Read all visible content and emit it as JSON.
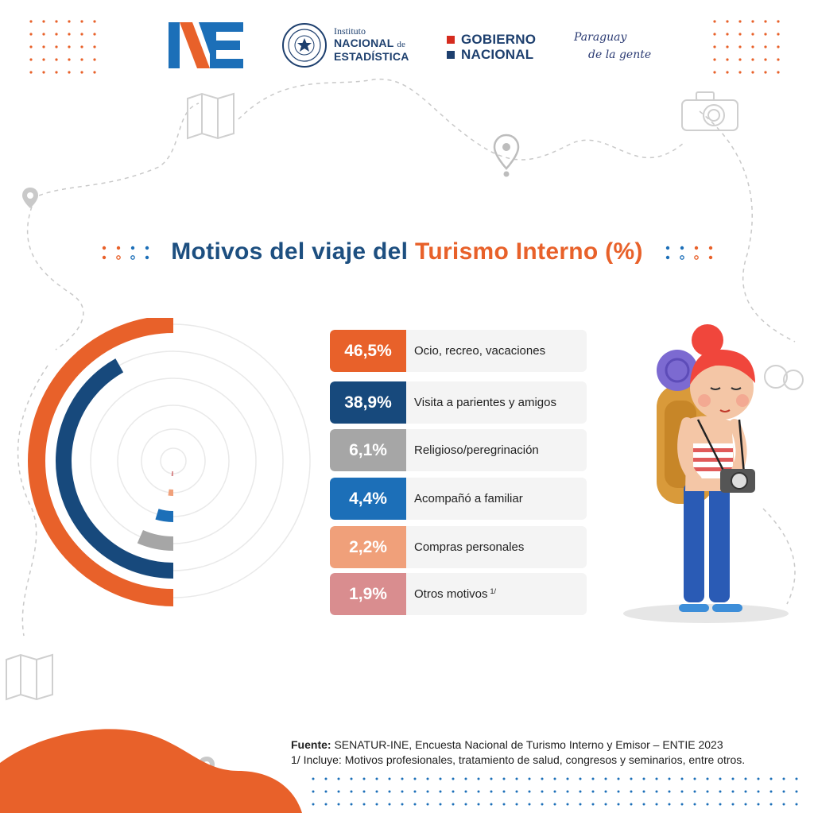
{
  "header": {
    "ine_logo": "INE",
    "institute_small": "Instituto",
    "institute_name_1": "NACIONAL",
    "institute_name_de": "de",
    "institute_name_2": "ESTADÍSTICA",
    "gobierno_1": "GOBIERNO",
    "gobierno_2": "NACIONAL",
    "slogan_1": "Paraguay",
    "slogan_2": "de la gente"
  },
  "title": {
    "part1": "Motivos del viaje del ",
    "part2": "Turismo Interno (%)"
  },
  "chart_data": {
    "type": "radial-bar",
    "title": "Motivos del viaje del Turismo Interno (%)",
    "categories": [
      "Ocio, recreo, vacaciones",
      "Visita a parientes y amigos",
      "Religioso/peregrinación",
      "Acompañó a familiar",
      "Compras personales",
      "Otros motivos"
    ],
    "values": [
      46.5,
      38.9,
      6.1,
      4.4,
      2.2,
      1.9
    ],
    "value_labels": [
      "46,5%",
      "38,9%",
      "6,1%",
      "4,4%",
      "2,2%",
      "1,9%"
    ],
    "colors": [
      "#e8612a",
      "#17497c",
      "#a6a6a6",
      "#1c6fb8",
      "#f0a07a",
      "#d98d8f"
    ],
    "footnote_marker": "1/"
  },
  "source": {
    "label": "Fuente:",
    "text": " SENATUR-INE, Encuesta Nacional de Turismo Interno y Emisor – ENTIE 2023",
    "note": "1/ Incluye:  Motivos profesionales, tratamiento de salud, congresos y seminarios, entre otros."
  }
}
